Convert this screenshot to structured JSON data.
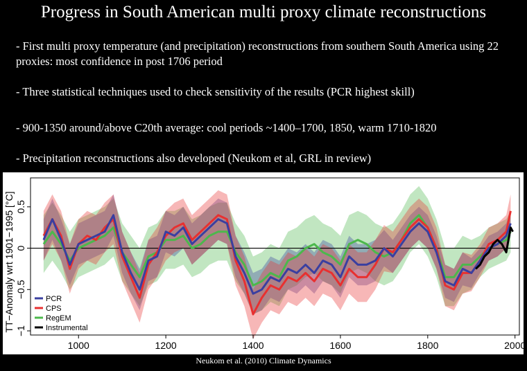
{
  "slide": {
    "title": "Progress in South American multi proxy climate reconstructions",
    "bullets": [
      "- First multi proxy temperature (and precipitation) reconstructions from southern South America using 22 proxies: most confidence in post 1706 period",
      "- Three statistical techniques used to check sensitivity of the results (PCR highest skill)",
      "- 900-1350 around/above C20th average: cool periods ~1400–1700, 1850, warm 1710-1820",
      "- Precipitation reconstructions also developed (Neukom et al, GRL in review)"
    ],
    "caption": "Neukom et al. (2010) Climate Dynamics"
  },
  "chart_data": {
    "type": "line",
    "title": "",
    "xlabel": "",
    "ylabel": "TT−Anomaly wrt 1901−1995 [°C]",
    "xlim": [
      890,
      2010
    ],
    "ylim": [
      -1.05,
      0.85
    ],
    "x_ticks": [
      1000,
      1200,
      1400,
      1600,
      1800,
      2000
    ],
    "y_ticks": [
      -1,
      -0.5,
      0,
      0.5
    ],
    "y_tick_labels": [
      "−1",
      "−0.5",
      "0",
      "0.5"
    ],
    "grid": false,
    "zero_line": true,
    "legend_position": "bottom-left",
    "x": [
      920,
      940,
      960,
      980,
      1000,
      1020,
      1040,
      1060,
      1080,
      1100,
      1120,
      1140,
      1160,
      1180,
      1200,
      1220,
      1240,
      1260,
      1280,
      1300,
      1320,
      1340,
      1360,
      1380,
      1400,
      1420,
      1440,
      1460,
      1480,
      1500,
      1520,
      1540,
      1560,
      1580,
      1600,
      1620,
      1640,
      1660,
      1680,
      1700,
      1720,
      1740,
      1760,
      1780,
      1800,
      1820,
      1840,
      1860,
      1880,
      1900,
      1920,
      1940,
      1960,
      1980,
      1990
    ],
    "series": [
      {
        "name": "PCR",
        "color": "#3a3fa0",
        "values": [
          0.1,
          0.35,
          0.1,
          -0.2,
          0.05,
          0.1,
          0.15,
          0.2,
          0.4,
          -0.05,
          -0.3,
          -0.5,
          -0.15,
          -0.1,
          0.2,
          0.15,
          0.25,
          0.05,
          0.15,
          0.25,
          0.35,
          0.3,
          -0.1,
          -0.3,
          -0.55,
          -0.5,
          -0.35,
          -0.4,
          -0.25,
          -0.3,
          -0.2,
          -0.3,
          -0.15,
          -0.2,
          -0.35,
          -0.1,
          -0.2,
          -0.2,
          -0.15,
          0.0,
          -0.1,
          0.05,
          0.2,
          0.3,
          0.2,
          -0.05,
          -0.4,
          -0.45,
          -0.25,
          -0.3,
          -0.15,
          0.0,
          0.05,
          0.15,
          0.3
        ],
        "band": [
          0.25,
          0.25,
          0.25,
          0.25,
          0.25,
          0.25,
          0.25,
          0.25,
          0.25,
          0.25,
          0.25,
          0.25,
          0.25,
          0.25,
          0.25,
          0.25,
          0.25,
          0.25,
          0.25,
          0.25,
          0.25,
          0.25,
          0.25,
          0.25,
          0.25,
          0.25,
          0.25,
          0.25,
          0.25,
          0.25,
          0.25,
          0.25,
          0.25,
          0.25,
          0.25,
          0.25,
          0.25,
          0.25,
          0.25,
          0.22,
          0.2,
          0.2,
          0.2,
          0.2,
          0.2,
          0.2,
          0.2,
          0.2,
          0.2,
          0.18,
          0.15,
          0.15,
          0.15,
          0.15,
          0.15
        ]
      },
      {
        "name": "CPS",
        "color": "#e83030",
        "values": [
          0.15,
          0.35,
          0.15,
          -0.25,
          0.05,
          0.15,
          0.1,
          0.25,
          0.35,
          -0.1,
          -0.35,
          -0.6,
          -0.2,
          -0.05,
          0.15,
          0.25,
          0.3,
          0.1,
          0.2,
          0.3,
          0.4,
          0.35,
          -0.15,
          -0.4,
          -0.8,
          -0.6,
          -0.45,
          -0.5,
          -0.35,
          -0.4,
          -0.3,
          -0.4,
          -0.25,
          -0.3,
          -0.45,
          -0.25,
          -0.35,
          -0.35,
          -0.2,
          0.0,
          -0.05,
          0.1,
          0.25,
          0.35,
          0.25,
          0.0,
          -0.45,
          -0.5,
          -0.3,
          -0.3,
          -0.15,
          0.05,
          0.1,
          0.2,
          0.45
        ],
        "band": [
          0.3,
          0.3,
          0.3,
          0.3,
          0.3,
          0.3,
          0.3,
          0.3,
          0.3,
          0.3,
          0.3,
          0.3,
          0.3,
          0.3,
          0.3,
          0.3,
          0.3,
          0.3,
          0.3,
          0.3,
          0.3,
          0.3,
          0.3,
          0.3,
          0.3,
          0.3,
          0.3,
          0.3,
          0.3,
          0.3,
          0.3,
          0.3,
          0.3,
          0.3,
          0.3,
          0.3,
          0.3,
          0.3,
          0.3,
          0.28,
          0.25,
          0.25,
          0.25,
          0.25,
          0.25,
          0.25,
          0.25,
          0.25,
          0.25,
          0.22,
          0.2,
          0.2,
          0.2,
          0.2,
          0.2
        ]
      },
      {
        "name": "RegEM",
        "color": "#4cb84c",
        "values": [
          0.05,
          0.2,
          0.05,
          -0.15,
          0.0,
          0.05,
          0.1,
          0.15,
          0.25,
          -0.05,
          -0.2,
          -0.35,
          -0.1,
          -0.05,
          0.1,
          0.1,
          0.15,
          0.0,
          0.05,
          0.15,
          0.2,
          0.2,
          -0.05,
          -0.2,
          -0.45,
          -0.4,
          -0.3,
          -0.35,
          -0.15,
          -0.1,
          0.0,
          0.05,
          -0.05,
          -0.1,
          -0.2,
          0.05,
          0.1,
          0.05,
          -0.05,
          -0.1,
          -0.05,
          0.1,
          0.3,
          0.4,
          0.25,
          0.0,
          -0.35,
          -0.35,
          -0.2,
          -0.2,
          -0.1,
          0.0,
          0.05,
          0.1,
          0.2
        ],
        "band": [
          0.35,
          0.35,
          0.35,
          0.35,
          0.35,
          0.35,
          0.35,
          0.35,
          0.35,
          0.35,
          0.35,
          0.35,
          0.35,
          0.35,
          0.35,
          0.35,
          0.35,
          0.35,
          0.35,
          0.35,
          0.35,
          0.35,
          0.35,
          0.35,
          0.35,
          0.35,
          0.35,
          0.35,
          0.35,
          0.35,
          0.35,
          0.35,
          0.35,
          0.35,
          0.35,
          0.35,
          0.35,
          0.35,
          0.35,
          0.35,
          0.35,
          0.35,
          0.35,
          0.35,
          0.35,
          0.35,
          0.35,
          0.35,
          0.35,
          0.3,
          0.25,
          0.25,
          0.25,
          0.25,
          0.25
        ]
      },
      {
        "name": "Instrumental",
        "color": "#000000",
        "x": [
          1910,
          1920,
          1930,
          1940,
          1950,
          1960,
          1970,
          1980,
          1990,
          1995
        ],
        "values": [
          -0.25,
          -0.2,
          -0.1,
          -0.05,
          0.05,
          0.1,
          0.05,
          -0.05,
          0.25,
          0.2
        ]
      }
    ]
  }
}
